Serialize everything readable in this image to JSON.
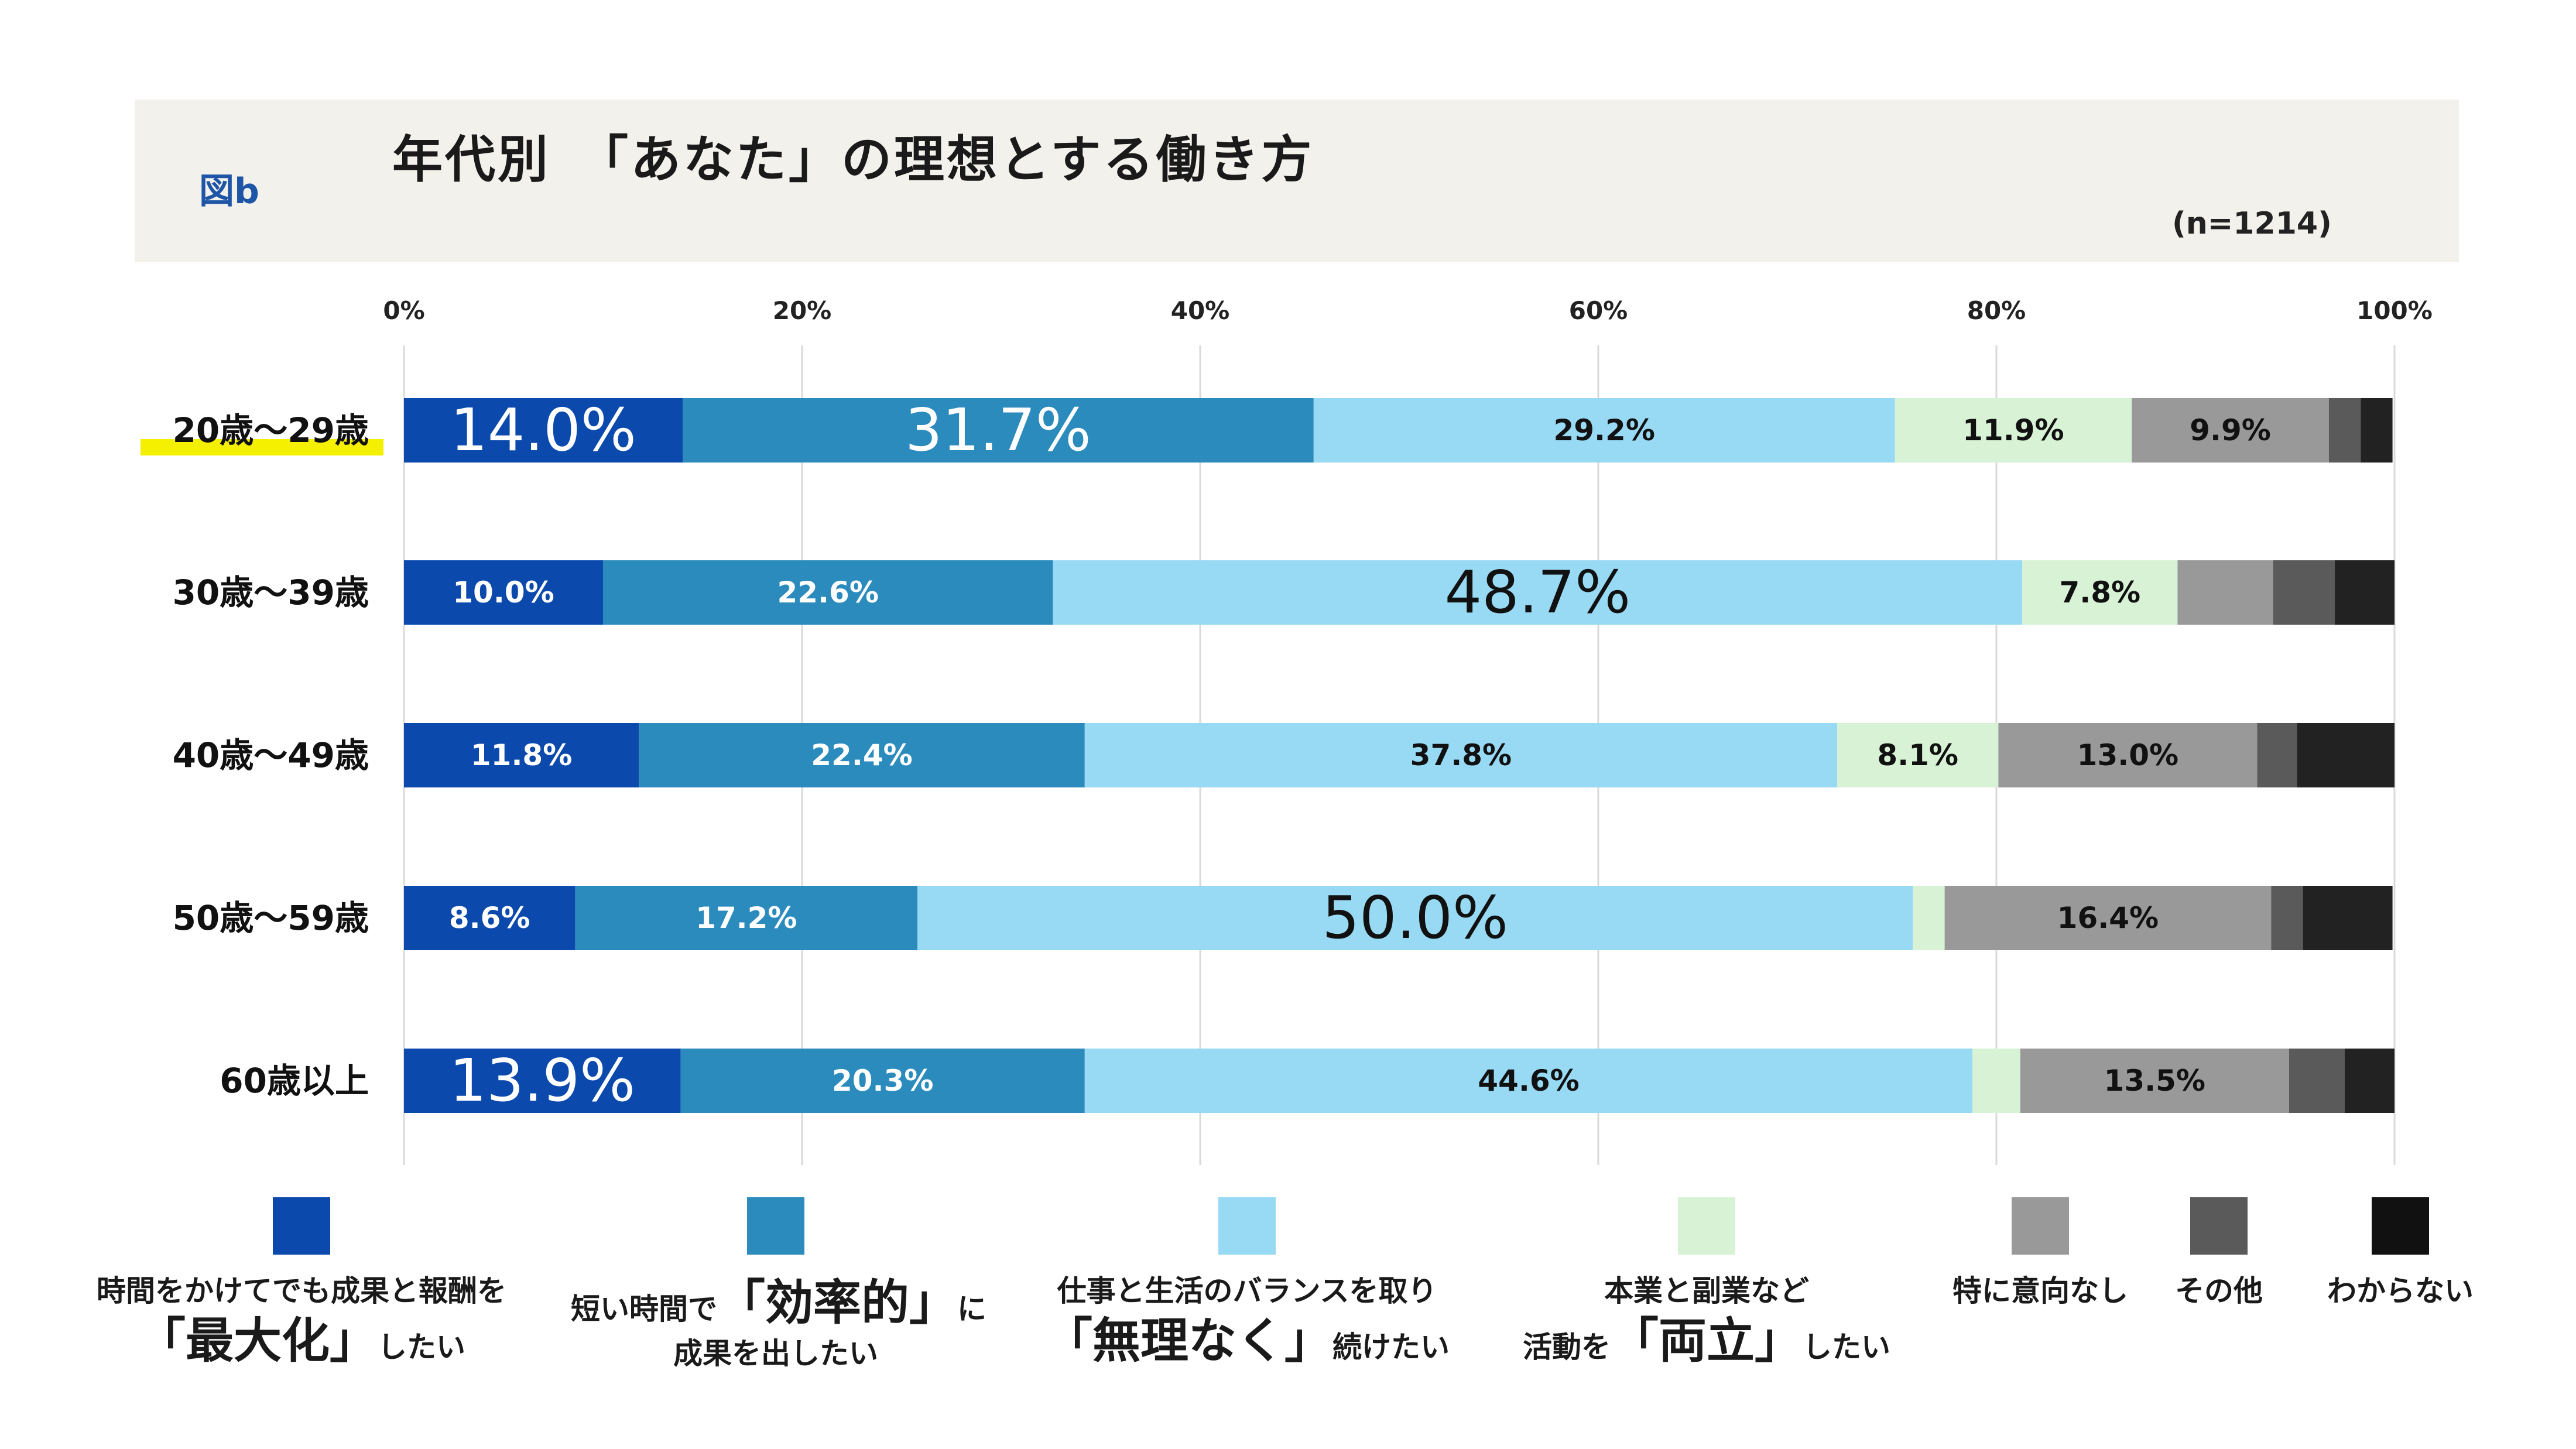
{
  "header": {
    "fig_label": "図b",
    "title": "年代別　「あなた」の理想とする働き方",
    "sample": "(n=1214)"
  },
  "chart_data": {
    "type": "bar",
    "orientation": "horizontal",
    "stacked": true,
    "xlim": [
      0,
      100
    ],
    "x_ticks": [
      "0%",
      "20%",
      "40%",
      "60%",
      "80%",
      "100%"
    ],
    "grid": true,
    "categories": [
      "20歳〜29歳",
      "30歳〜39歳",
      "40歳〜49歳",
      "50歳〜59歳",
      "60歳以上"
    ],
    "highlighted_category": "20歳〜29歳",
    "series": [
      {
        "key": "efficient_max",
        "color": "#0b49ad",
        "label_color": "#ffffff",
        "values": [
          14.0,
          10.0,
          11.8,
          8.6,
          13.9
        ],
        "labels": [
          "14.0%",
          "10.0%",
          "11.8%",
          "8.6%",
          "13.9%"
        ],
        "emphasis": [
          true,
          false,
          false,
          false,
          true
        ]
      },
      {
        "key": "efficient_results",
        "color": "#2b8bbd",
        "label_color": "#ffffff",
        "values": [
          31.7,
          22.6,
          22.4,
          17.2,
          20.3
        ],
        "labels": [
          "31.7%",
          "22.6%",
          "22.4%",
          "17.2%",
          "20.3%"
        ],
        "emphasis": [
          true,
          false,
          false,
          false,
          false
        ]
      },
      {
        "key": "balance",
        "color": "#98d9f4",
        "label_color": "#111111",
        "values": [
          29.2,
          48.7,
          37.8,
          50.0,
          44.6
        ],
        "labels": [
          "29.2%",
          "48.7%",
          "37.8%",
          "50.0%",
          "44.6%"
        ],
        "emphasis": [
          false,
          true,
          false,
          true,
          false
        ]
      },
      {
        "key": "side_job",
        "color": "#d8f2d6",
        "label_color": "#111111",
        "values": [
          11.9,
          7.8,
          8.1,
          1.6,
          2.4
        ],
        "labels": [
          "11.9%",
          "7.8%",
          "8.1%",
          "",
          ""
        ],
        "emphasis": [
          false,
          false,
          false,
          false,
          false
        ]
      },
      {
        "key": "none",
        "color": "#999999",
        "label_color": "#111111",
        "values": [
          9.9,
          4.8,
          13.0,
          16.4,
          13.5
        ],
        "labels": [
          "9.9%",
          "",
          "13.0%",
          "16.4%",
          "13.5%"
        ],
        "emphasis": [
          false,
          false,
          false,
          false,
          false
        ]
      },
      {
        "key": "other",
        "color": "#5a5a5a",
        "label_color": "#ffffff",
        "values": [
          1.6,
          3.1,
          2.0,
          1.6,
          2.8
        ],
        "labels": [
          "",
          "",
          "",
          "",
          ""
        ],
        "emphasis": [
          false,
          false,
          false,
          false,
          false
        ]
      },
      {
        "key": "unknown",
        "color": "#222222",
        "label_color": "#ffffff",
        "values": [
          1.6,
          3.0,
          4.9,
          4.5,
          2.5
        ],
        "labels": [
          "",
          "",
          "",
          "",
          ""
        ],
        "emphasis": [
          false,
          false,
          false,
          false,
          false
        ]
      }
    ]
  },
  "legend": [
    {
      "color": "#0b49ad",
      "lines": [
        [
          {
            "t": "時間をかけてでも成果と報酬を",
            "s": "normal"
          }
        ],
        [
          {
            "t": "「最大化」",
            "s": "big"
          },
          {
            "t": "したい",
            "s": "small"
          }
        ]
      ]
    },
    {
      "color": "#2b8bbd",
      "lines": [
        [
          {
            "t": "短い時間で",
            "s": "normal"
          },
          {
            "t": "「効率的」",
            "s": "big"
          },
          {
            "t": "に",
            "s": "small"
          }
        ],
        [
          {
            "t": "成果を出したい",
            "s": "normal"
          }
        ]
      ]
    },
    {
      "color": "#98d9f4",
      "lines": [
        [
          {
            "t": "仕事と生活のバランスを取り",
            "s": "normal"
          }
        ],
        [
          {
            "t": "「無理なく」",
            "s": "big"
          },
          {
            "t": "続けたい",
            "s": "small"
          }
        ]
      ]
    },
    {
      "color": "#d8f2d6",
      "lines": [
        [
          {
            "t": "本業と副業など",
            "s": "normal"
          }
        ],
        [
          {
            "t": "活動を",
            "s": "small"
          },
          {
            "t": "「両立」",
            "s": "big"
          },
          {
            "t": "したい",
            "s": "small"
          }
        ]
      ]
    },
    {
      "color": "#999999",
      "lines": [
        [
          {
            "t": "特に意向なし",
            "s": "normal"
          }
        ]
      ]
    },
    {
      "color": "#5a5a5a",
      "lines": [
        [
          {
            "t": "その他",
            "s": "normal"
          }
        ]
      ]
    },
    {
      "color": "#111111",
      "lines": [
        [
          {
            "t": "わからない",
            "s": "normal"
          }
        ]
      ]
    }
  ]
}
